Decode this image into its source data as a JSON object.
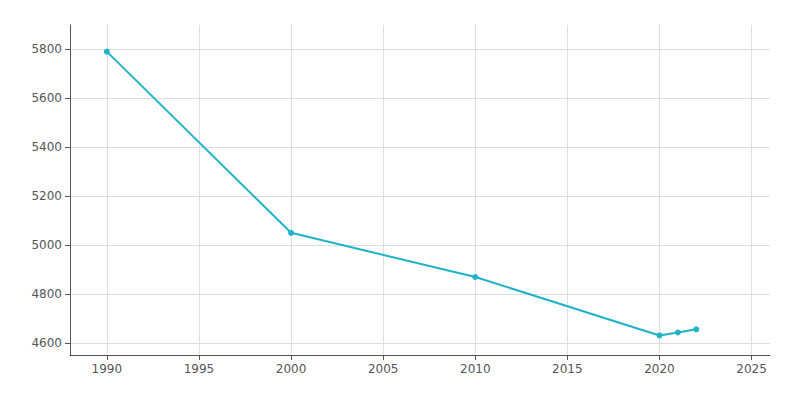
{
  "chart_data": {
    "type": "line",
    "x": [
      1990,
      2000,
      2010,
      2020,
      2021,
      2022
    ],
    "values": [
      5791,
      5050,
      4869,
      4630,
      4642,
      4655
    ],
    "color": "#20b2c8",
    "marker": "circle",
    "xlim": [
      1988,
      2026
    ],
    "xticks": [
      1990,
      1995,
      2000,
      2005,
      2010,
      2015,
      2020,
      2025
    ],
    "ylim": [
      4550,
      5900
    ],
    "yticks": [
      4600,
      4800,
      5000,
      5200,
      5400,
      5600,
      5800
    ],
    "grid": true
  }
}
